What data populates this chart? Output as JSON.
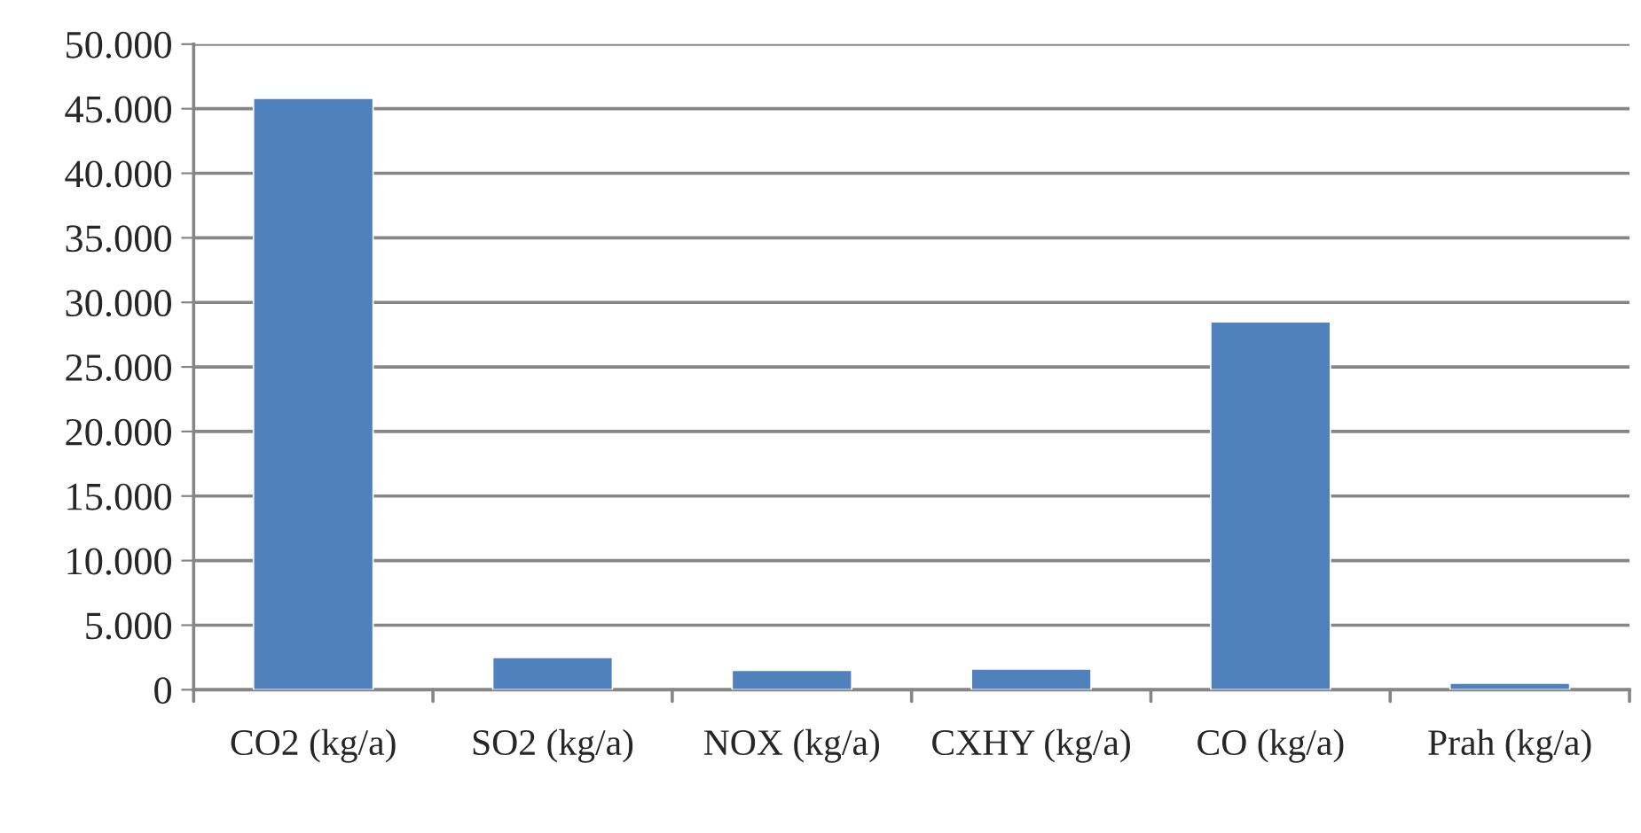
{
  "chart_data": {
    "type": "bar",
    "categories": [
      "CO2 (kg/a)",
      "SO2 (kg/a)",
      "NOX (kg/a)",
      "CXHY (kg/a)",
      "CO (kg/a)",
      "Prah (kg/a)"
    ],
    "values": [
      45800,
      2500,
      1500,
      1600,
      28500,
      500
    ],
    "color": "#4f81bd",
    "ylim": [
      0,
      50000
    ],
    "yticks": [
      {
        "value": 0,
        "label": "0"
      },
      {
        "value": 5000,
        "label": "5.000"
      },
      {
        "value": 10000,
        "label": "10.000"
      },
      {
        "value": 15000,
        "label": "15.000"
      },
      {
        "value": 20000,
        "label": "20.000"
      },
      {
        "value": 25000,
        "label": "25.000"
      },
      {
        "value": 30000,
        "label": "30.000"
      },
      {
        "value": 35000,
        "label": "35.000"
      },
      {
        "value": 40000,
        "label": "40.000"
      },
      {
        "value": 45000,
        "label": "45.000"
      },
      {
        "value": 50000,
        "label": "50.000"
      }
    ],
    "grid": "y",
    "legend": false
  }
}
